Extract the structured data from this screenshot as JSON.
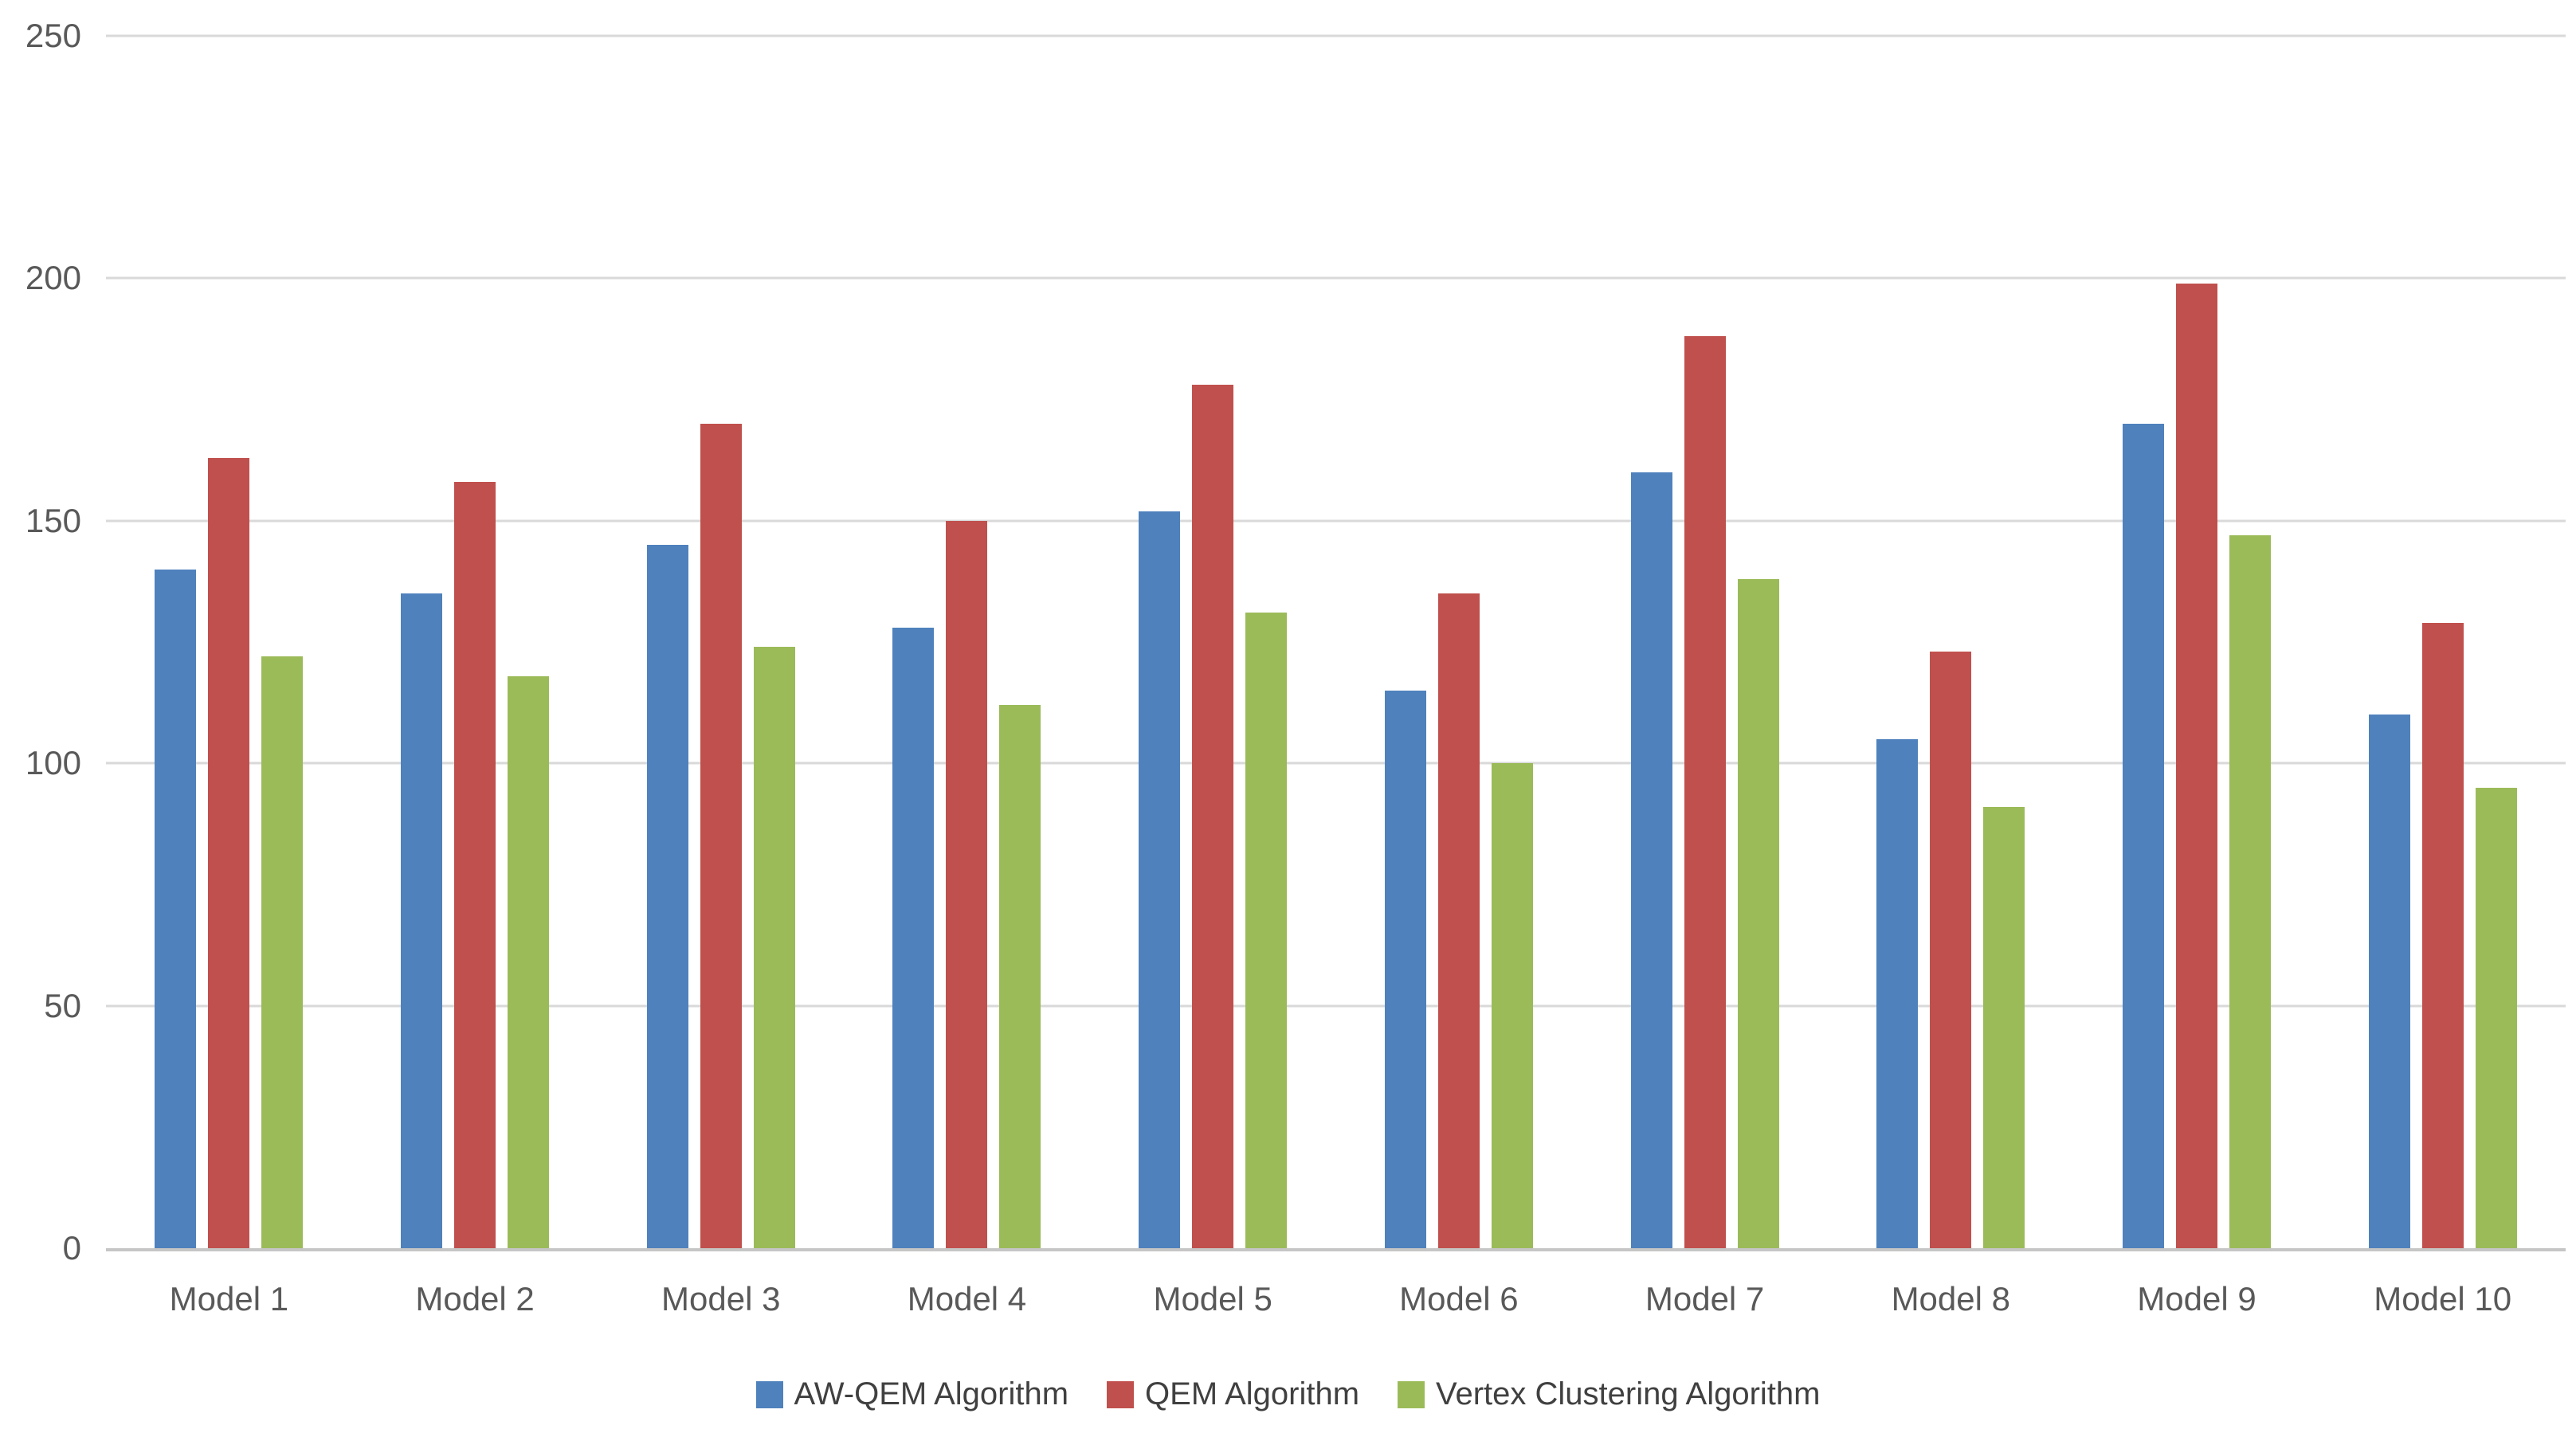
{
  "chart_data": {
    "type": "bar",
    "title": "",
    "categories": [
      "Model 1",
      "Model 2",
      "Model 3",
      "Model 4",
      "Model 5",
      "Model 6",
      "Model 7",
      "Model 8",
      "Model 9",
      "Model 10"
    ],
    "series": [
      {
        "name": "AW-QEM Algorithm",
        "color": "#4F81BD",
        "values": [
          140,
          135,
          145,
          128,
          152,
          115,
          160,
          105,
          170,
          110
        ]
      },
      {
        "name": "QEM Algorithm",
        "color": "#C0504D",
        "values": [
          163,
          158,
          170,
          150,
          178,
          135,
          188,
          123,
          199,
          129
        ]
      },
      {
        "name": "Vertex Clustering Algorithm",
        "color": "#9BBB59",
        "values": [
          122,
          118,
          124,
          112,
          131,
          100,
          138,
          91,
          147,
          95
        ]
      }
    ],
    "xlabel": "",
    "ylabel": "",
    "ylim": [
      0,
      250
    ],
    "yticks": [
      250,
      200,
      150,
      100,
      50,
      0
    ],
    "grid": true,
    "legend_position": "bottom"
  },
  "colors": {
    "background": "#FFFFFF",
    "gridline": "#D9D9D9",
    "axis_line": "#C6C6C6",
    "tick_text": "#595959",
    "legend_text": "#404040"
  }
}
